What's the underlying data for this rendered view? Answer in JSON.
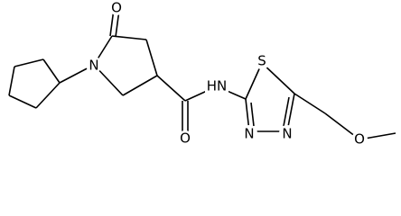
{
  "atoms": [
    {
      "label": "N"
    },
    {
      "label": "O"
    },
    {
      "label": "O"
    },
    {
      "label": "HN"
    },
    {
      "label": "S"
    },
    {
      "label": "N"
    },
    {
      "label": "N"
    },
    {
      "label": "O"
    }
  ]
}
